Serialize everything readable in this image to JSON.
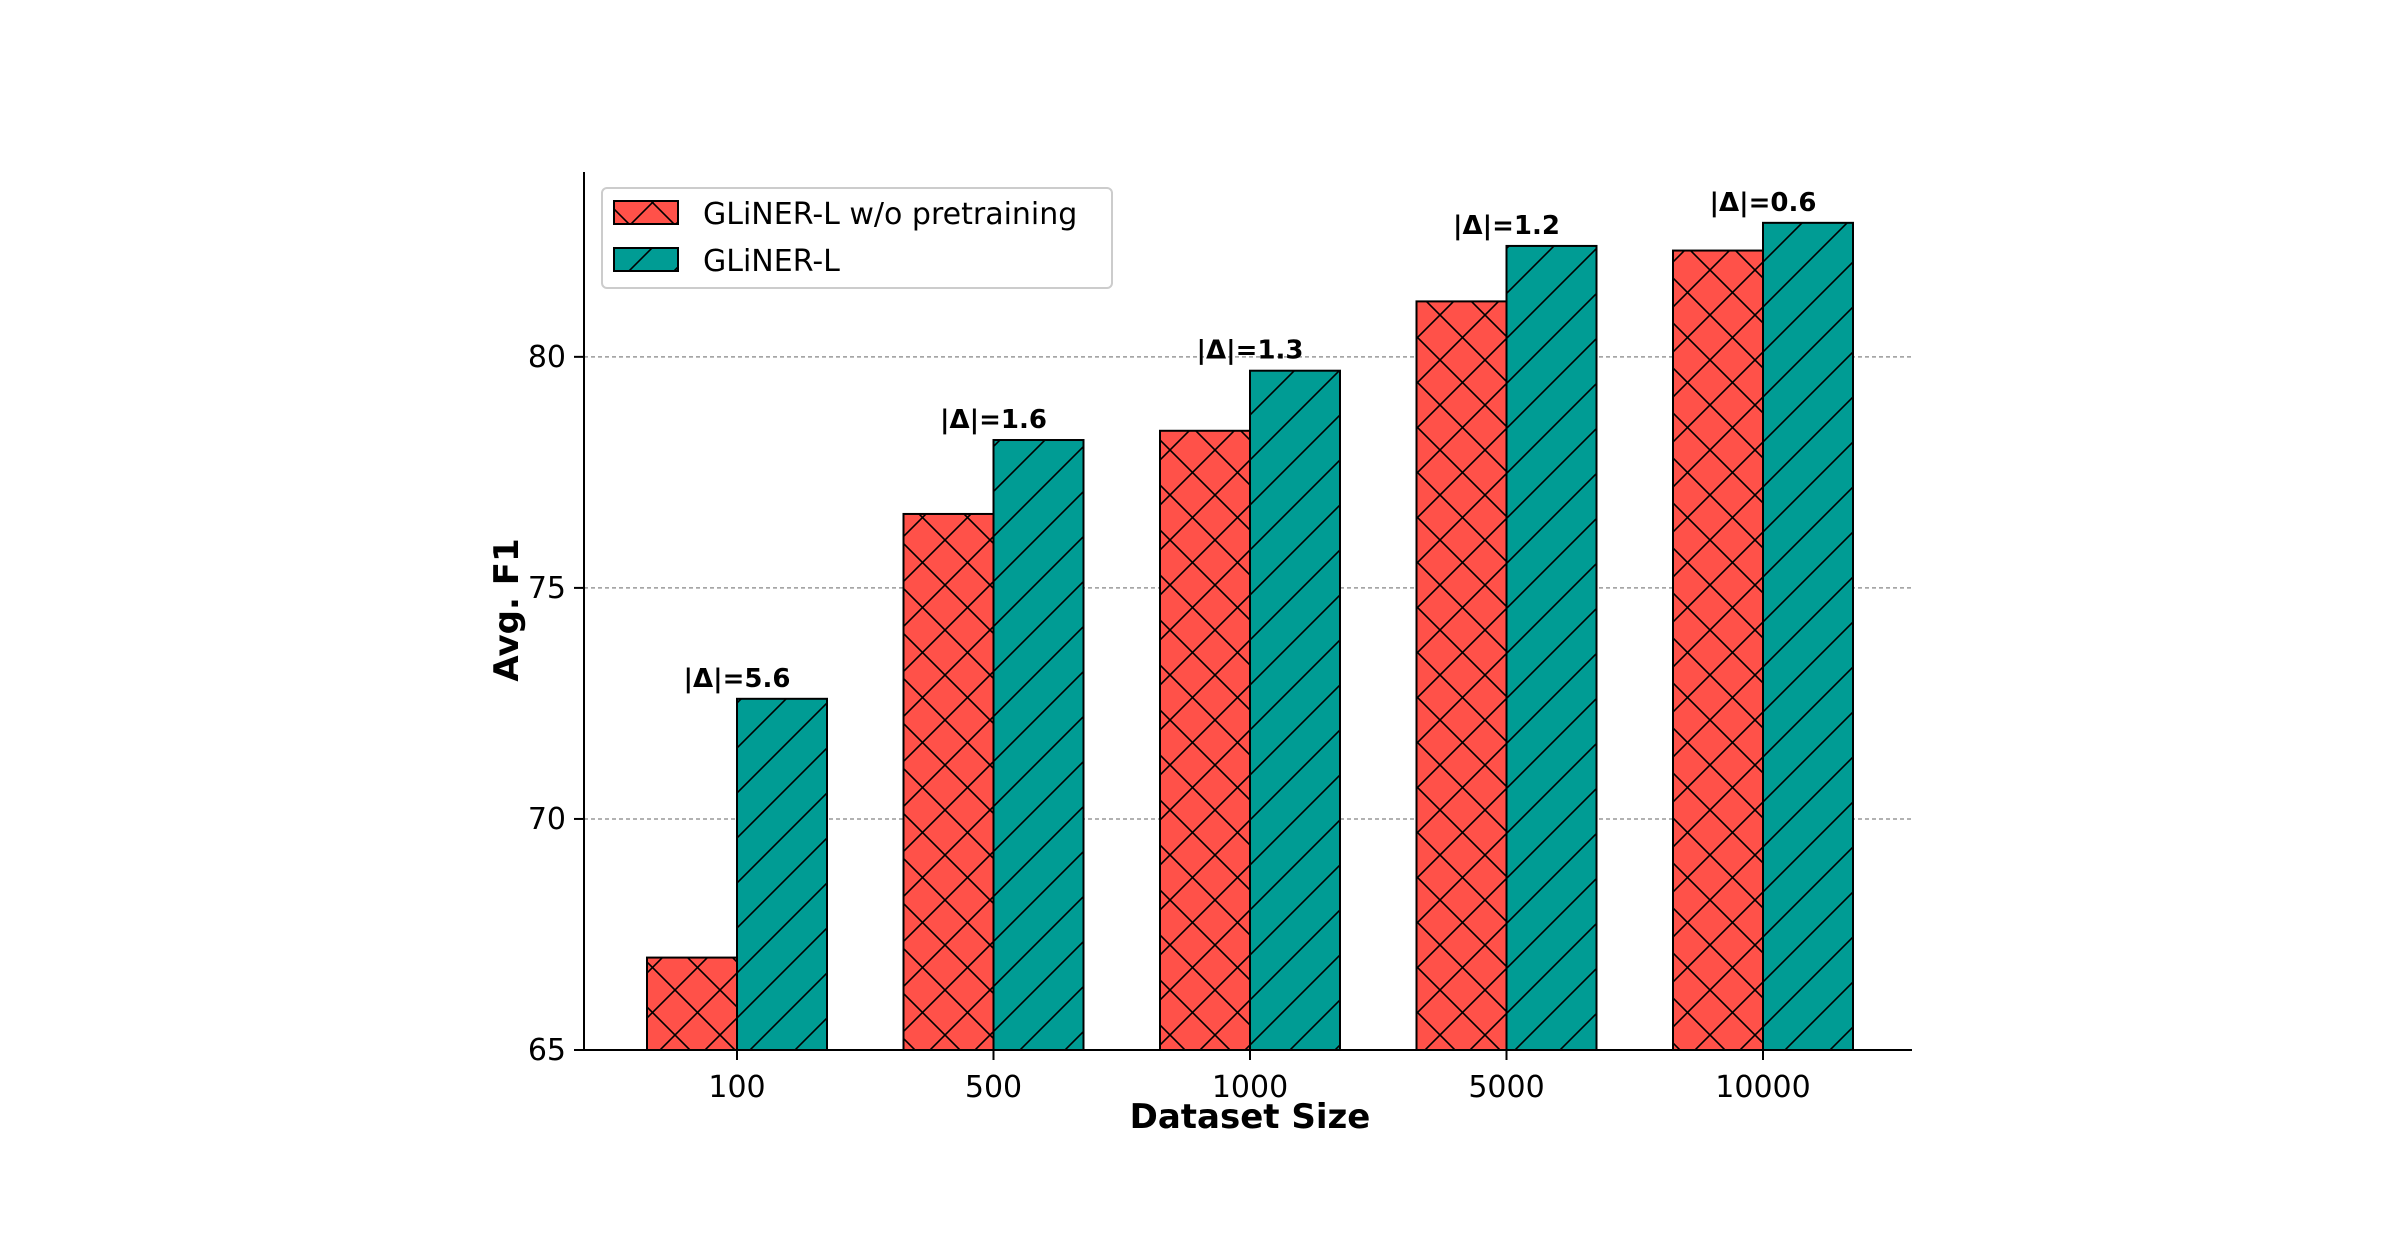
{
  "chart_data": {
    "type": "bar",
    "title": "",
    "xlabel": "Dataset Size",
    "ylabel": "Avg. F1",
    "categories": [
      "100",
      "500",
      "1000",
      "5000",
      "10000"
    ],
    "ylim": [
      65,
      84
    ],
    "yticks": [
      65,
      70,
      75,
      80
    ],
    "grid": true,
    "legend_position": "top-left",
    "series": [
      {
        "name": "GLiNER-L w/o pretraining",
        "values": [
          67.0,
          76.6,
          78.4,
          81.2,
          82.3
        ],
        "color": "#FF5149",
        "hatch": "cross"
      },
      {
        "name": "GLiNER-L",
        "values": [
          72.6,
          78.2,
          79.7,
          82.4,
          82.9
        ],
        "color": "#009C94",
        "hatch": "diagonal"
      }
    ],
    "annotations": [
      "|Δ|=5.6",
      "|Δ|=1.6",
      "|Δ|=1.3",
      "|Δ|=1.2",
      "|Δ|=0.6"
    ]
  }
}
